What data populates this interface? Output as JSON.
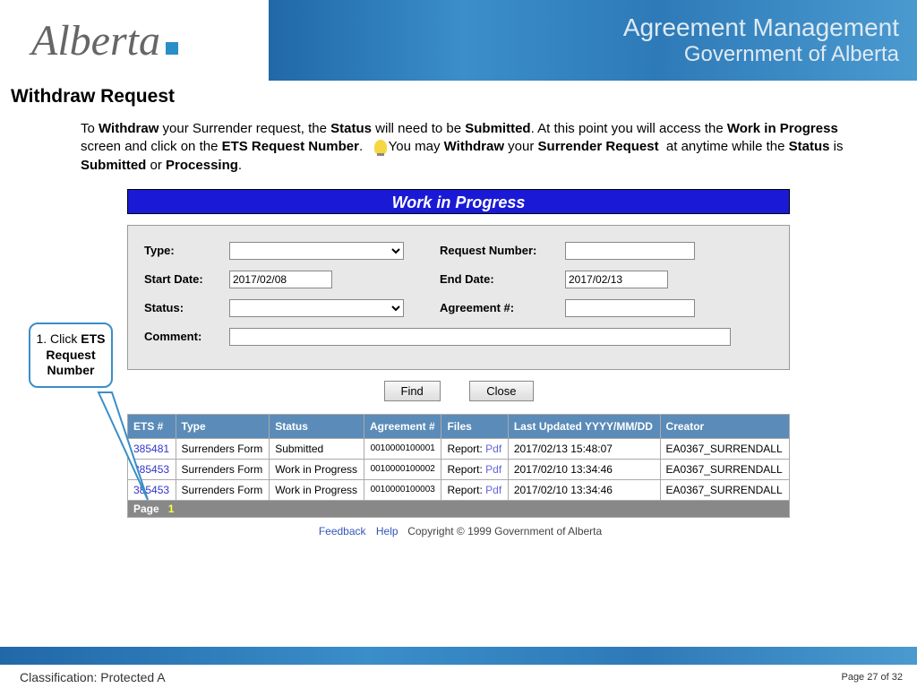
{
  "header": {
    "logo_text": "Alberta",
    "title1": "Agreement Management",
    "title2": "Government of Alberta"
  },
  "page": {
    "section_title": "Withdraw Request",
    "instruction_html": "To <b>Withdraw</b> your Surrender request, the <b>Status</b> will need to be <b>Submitted</b>. At this point you will access the <b>Work in Progress</b> screen and click on the <b>ETS Request Number</b>. &nbsp;&nbsp;<span class='bulb'></span>You may <b>Withdraw</b> your <b>Surrender Request</b> &nbsp;at anytime while the <b>Status</b> is <b>Submitted</b> or <b>Processing</b>.",
    "wip_title": "Work in Progress"
  },
  "form": {
    "labels": {
      "type": "Type:",
      "start": "Start Date:",
      "status": "Status:",
      "comment": "Comment:",
      "reqnum": "Request Number:",
      "end": "End Date:",
      "agreement": "Agreement #:"
    },
    "values": {
      "start_date": "2017/02/08",
      "end_date": "2017/02/13"
    },
    "buttons": {
      "find": "Find",
      "close": "Close"
    }
  },
  "table": {
    "headers": [
      "ETS #",
      "Type",
      "Status",
      "Agreement #",
      "Files",
      "Last Updated YYYY/MM/DD",
      "Creator"
    ],
    "rows": [
      {
        "ets": "385481",
        "type": "Surrenders Form",
        "status": "Submitted",
        "agreement": "0010000100001",
        "file_label": "Report:",
        "file_link": "Pdf",
        "updated": "2017/02/13 15:48:07",
        "creator": "EA0367_SURRENDALL"
      },
      {
        "ets": "385453",
        "type": "Surrenders Form",
        "status": "Work in Progress",
        "agreement": "0010000100002",
        "file_label": "Report:",
        "file_link": "Pdf",
        "updated": "2017/02/10 13:34:46",
        "creator": "EA0367_SURRENDALL"
      },
      {
        "ets": "385453",
        "type": "Surrenders Form",
        "status": "Work in Progress",
        "agreement": "0010000100003",
        "file_label": "Report:",
        "file_link": "Pdf",
        "updated": "2017/02/10 13:34:46",
        "creator": "EA0367_SURRENDALL"
      }
    ],
    "pager_label": "Page",
    "pager_num": "1"
  },
  "footer": {
    "feedback": "Feedback",
    "help": "Help",
    "copyright": "Copyright © 1999 Government of Alberta",
    "page_num": "Page 27 of 32",
    "classification": "Classification: Protected A"
  },
  "callout": {
    "text_html": "1. Click <b>ETS Request Number</b>"
  },
  "colors": {
    "banner1": "#2168a8",
    "banner2": "#3a8ec9",
    "wip_bg": "#1a1ad6",
    "th_bg": "#5b8bb8"
  }
}
